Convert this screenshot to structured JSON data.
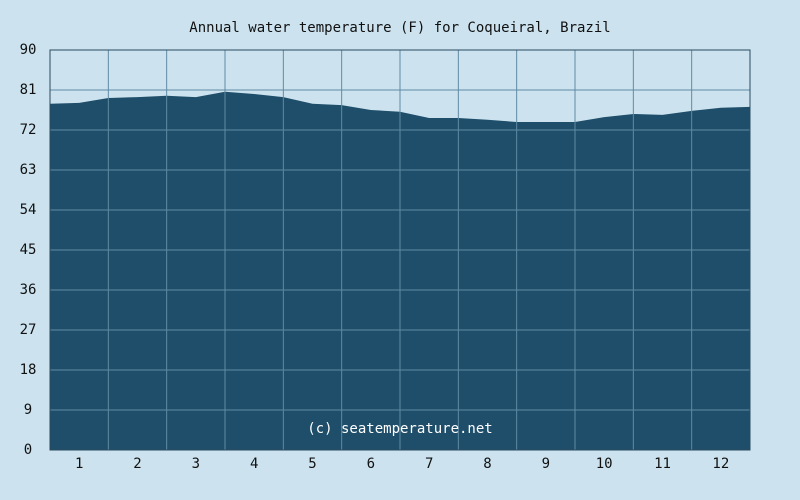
{
  "chart_data": {
    "type": "area",
    "title": "Annual water temperature (F) for Coqueiral, Brazil",
    "annotation": "(c) seatemperature.net",
    "x": [
      0.5,
      1,
      1.5,
      2,
      2.5,
      3,
      3.5,
      4,
      4.5,
      5,
      5.5,
      6,
      6.5,
      7,
      7.5,
      8,
      8.5,
      9,
      9.5,
      10,
      10.5,
      11,
      11.5,
      12,
      12.5
    ],
    "values": [
      77.9,
      78.1,
      79.2,
      79.4,
      79.7,
      79.4,
      80.6,
      80.1,
      79.4,
      77.9,
      77.6,
      76.5,
      76.1,
      74.7,
      74.7,
      74.3,
      73.8,
      73.8,
      73.8,
      74.9,
      75.6,
      75.4,
      76.3,
      77.0,
      77.2
    ],
    "color": "#1f4e6a",
    "xlim": [
      0.5,
      12.5
    ],
    "xticks": [
      1,
      2,
      3,
      4,
      5,
      6,
      7,
      8,
      9,
      10,
      11,
      12
    ],
    "ylim": [
      0,
      90
    ],
    "yticks": [
      0,
      9,
      18,
      27,
      36,
      45,
      54,
      63,
      72,
      81,
      90
    ],
    "grid": true
  }
}
